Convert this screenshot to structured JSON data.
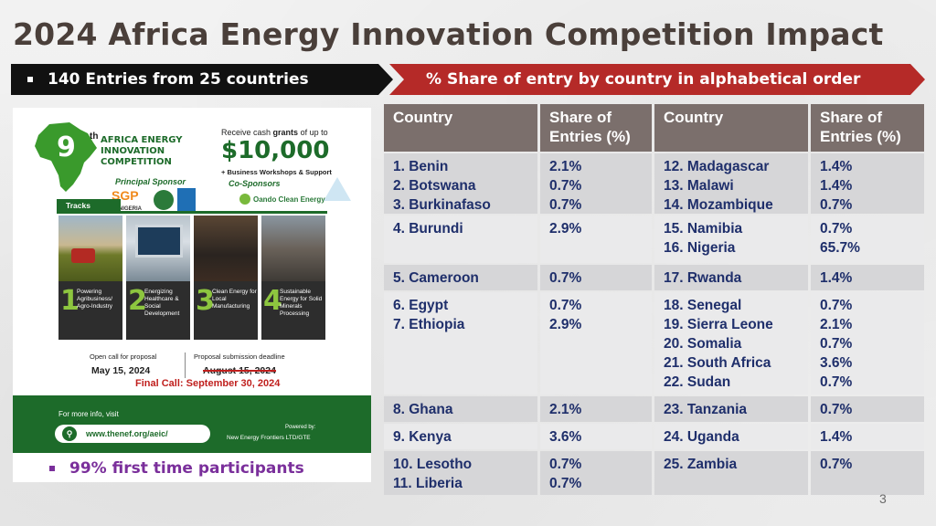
{
  "title": "2024 Africa Energy Innovation Competition Impact",
  "left_banner": "140 Entries from 25 countries",
  "right_banner": "% Share of entry by country in alphabetical order",
  "footer_banner": "99% first time participants",
  "page_number": "3",
  "colors": {
    "title": "#4a3f3a",
    "left_banner_bg": "#111111",
    "right_banner_bg": "#b52a28",
    "table_header_bg": "#7b6f6c",
    "table_text": "#1f2f6b",
    "poster_green": "#1d6b2a",
    "highlight_purple": "#7a2f9b"
  },
  "poster": {
    "edition_num": "9",
    "edition_sup": "th",
    "competition_name": "AFRICA ENERGY INNOVATION COMPETITION",
    "principal_sponsor_label": "Principal Sponsor",
    "sponsor_logo_text": "SGP",
    "sponsor_country": "NIGERIA",
    "grant_prefix": "Receive cash",
    "grant_bold": "grants",
    "grant_suffix": "of up to",
    "grant_amount": "$10,000",
    "grant_extra": "+ Business Workshops & Support",
    "cosponsors_label": "Co-Sponsors",
    "cosponsor_name": "Oando Clean Energy",
    "tracks_label": "Tracks",
    "tracks": [
      {
        "num": "1",
        "label": "Powering Agribusiness/ Agro-Industry"
      },
      {
        "num": "2",
        "label": "Energizing Healthcare & Social Development"
      },
      {
        "num": "3",
        "label": "Clean Energy for Local Manufacturing"
      },
      {
        "num": "4",
        "label": "Sustainable Energy for Solid Minerals Processing"
      }
    ],
    "open_call_label": "Open call for proposal",
    "open_call_date": "May 15, 2024",
    "deadline_label": "Proposal submission deadline",
    "deadline_old": "August 15, 2024",
    "final_call": "Final Call: September 30, 2024",
    "more_info": "For more info, visit",
    "url": "www.thenef.org/aeic/",
    "powered_label": "Powered by:",
    "powered_org": "New Energy Frontiers LTD/GTE"
  },
  "table": {
    "headers": [
      "Country",
      "Share of Entries (%)",
      "Country",
      "Share of Entries (%)"
    ],
    "rows": [
      {
        "left_countries": [
          "1. Benin",
          "2. Botswana",
          "3. Burkinafaso"
        ],
        "left_shares": [
          "2.1%",
          "0.7%",
          "0.7%"
        ],
        "right_countries": [
          "12. Madagascar",
          "13. Malawi",
          "14. Mozambique"
        ],
        "right_shares": [
          "1.4%",
          "1.4%",
          "0.7%"
        ]
      },
      {
        "left_countries": [
          "4. Burundi"
        ],
        "left_shares": [
          "2.9%"
        ],
        "right_countries": [
          "15. Namibia",
          "16. Nigeria"
        ],
        "right_shares": [
          "0.7%",
          "65.7%"
        ]
      },
      {
        "left_countries": [
          "5. Cameroon"
        ],
        "left_shares": [
          "0.7%"
        ],
        "right_countries": [
          "17. Rwanda"
        ],
        "right_shares": [
          "1.4%"
        ]
      },
      {
        "left_countries": [
          "6. Egypt",
          "7. Ethiopia"
        ],
        "left_shares": [
          "0.7%",
          "2.9%"
        ],
        "right_countries": [
          "18. Senegal",
          "19. Sierra Leone",
          "20. Somalia",
          "21. South Africa",
          "22. Sudan"
        ],
        "right_shares": [
          "0.7%",
          "2.1%",
          "0.7%",
          "3.6%",
          "0.7%"
        ]
      },
      {
        "left_countries": [
          "8. Ghana"
        ],
        "left_shares": [
          "2.1%"
        ],
        "right_countries": [
          "23. Tanzania"
        ],
        "right_shares": [
          "0.7%"
        ]
      },
      {
        "left_countries": [
          "9. Kenya"
        ],
        "left_shares": [
          "3.6%"
        ],
        "right_countries": [
          "24. Uganda"
        ],
        "right_shares": [
          "1.4%"
        ]
      },
      {
        "left_countries": [
          "10. Lesotho",
          "11. Liberia"
        ],
        "left_shares": [
          "0.7%",
          "0.7%"
        ],
        "right_countries": [
          "25. Zambia"
        ],
        "right_shares": [
          "0.7%"
        ]
      }
    ]
  }
}
